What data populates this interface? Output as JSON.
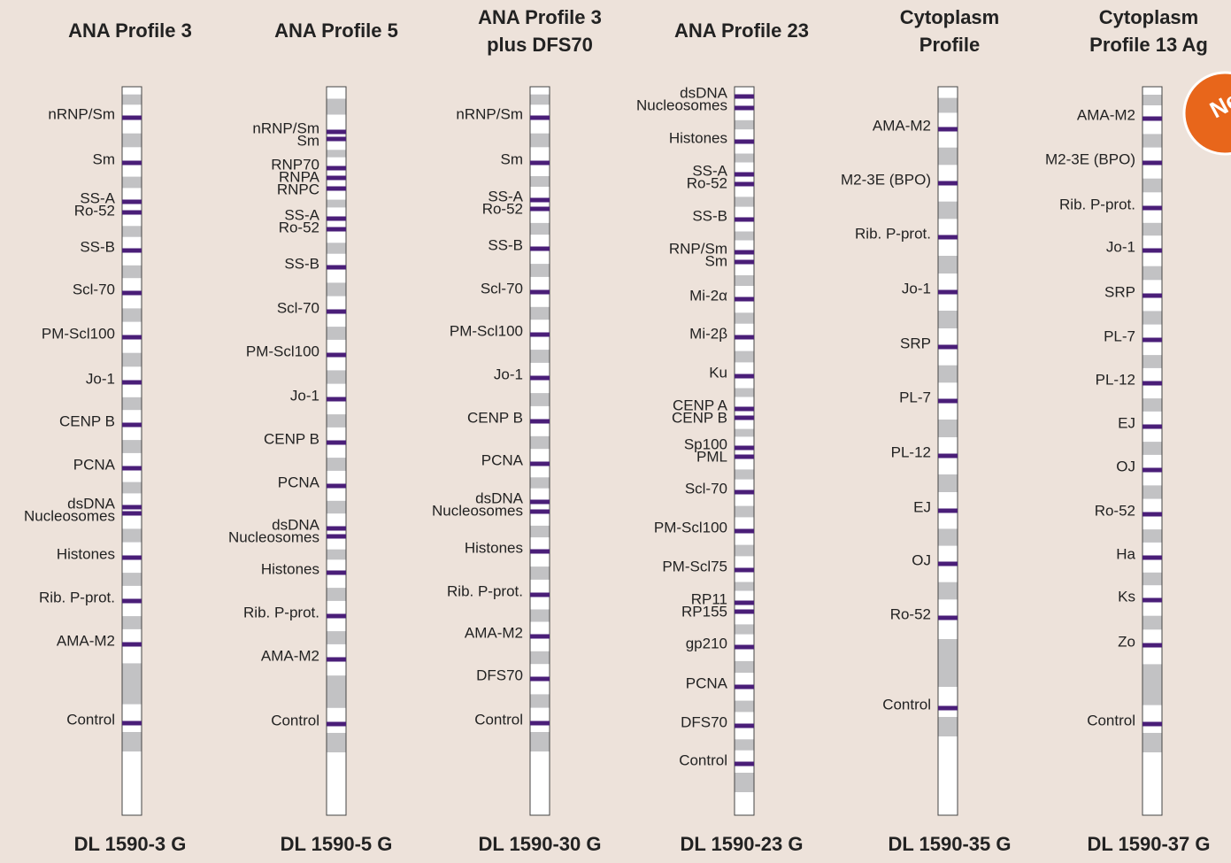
{
  "badge": "New",
  "columns": [
    {
      "title": [
        "ANA Profile 3"
      ],
      "code": "DL 1590-3 G",
      "labels": [
        "nRNP/Sm",
        "Sm",
        "SS-A",
        "Ro-52",
        "SS-B",
        "Scl-70",
        "PM-Scl100",
        "Jo-1",
        "CENP B",
        "PCNA",
        "dsDNA",
        "Nucleosomes",
        "Histones",
        "Rib. P-prot.",
        "AMA-M2",
        "Control"
      ]
    },
    {
      "title": [
        "ANA Profile 5"
      ],
      "code": "DL 1590-5 G",
      "labels": [
        "nRNP/Sm",
        "Sm",
        "RNP70",
        "RNPA",
        "RNPC",
        "SS-A",
        "Ro-52",
        "SS-B",
        "Scl-70",
        "PM-Scl100",
        "Jo-1",
        "CENP B",
        "PCNA",
        "dsDNA",
        "Nucleosomes",
        "Histones",
        "Rib. P-prot.",
        "AMA-M2",
        "Control"
      ]
    },
    {
      "title": [
        "ANA Profile 3",
        "plus DFS70"
      ],
      "code": "DL 1590-30 G",
      "labels": [
        "nRNP/Sm",
        "Sm",
        "SS-A",
        "Ro-52",
        "SS-B",
        "Scl-70",
        "PM-Scl100",
        "Jo-1",
        "CENP B",
        "PCNA",
        "dsDNA",
        "Nucleosomes",
        "Histones",
        "Rib. P-prot.",
        "AMA-M2",
        "DFS70",
        "Control"
      ]
    },
    {
      "title": [
        "ANA Profile 23"
      ],
      "code": "DL 1590-23 G",
      "labels": [
        "dsDNA",
        "Nucleosomes",
        "Histones",
        "SS-A",
        "Ro-52",
        "SS-B",
        "RNP/Sm",
        "Sm",
        "Mi-2α",
        "Mi-2β",
        "Ku",
        "CENP A",
        "CENP B",
        "Sp100",
        "PML",
        "Scl-70",
        "PM-Scl100",
        "PM-Scl75",
        "RP11",
        "RP155",
        "gp210",
        "PCNA",
        "DFS70",
        "Control"
      ]
    },
    {
      "title": [
        "Cytoplasm",
        "Profile"
      ],
      "code": "DL 1590-35 G",
      "labels": [
        "AMA-M2",
        "M2-3E (BPO)",
        "Rib. P-prot.",
        "Jo-1",
        "SRP",
        "PL-7",
        "PL-12",
        "EJ",
        "OJ",
        "Ro-52",
        "Control"
      ]
    },
    {
      "title": [
        "Cytoplasm",
        "Profile 13 Ag"
      ],
      "code": "DL 1590-37 G",
      "labels": [
        "AMA-M2",
        "M2-3E (BPO)",
        "Rib. P-prot.",
        "Jo-1",
        "SRP",
        "PL-7",
        "PL-12",
        "EJ",
        "OJ",
        "Ro-52",
        "Ha",
        "Ks",
        "Zo",
        "Control"
      ]
    }
  ]
}
